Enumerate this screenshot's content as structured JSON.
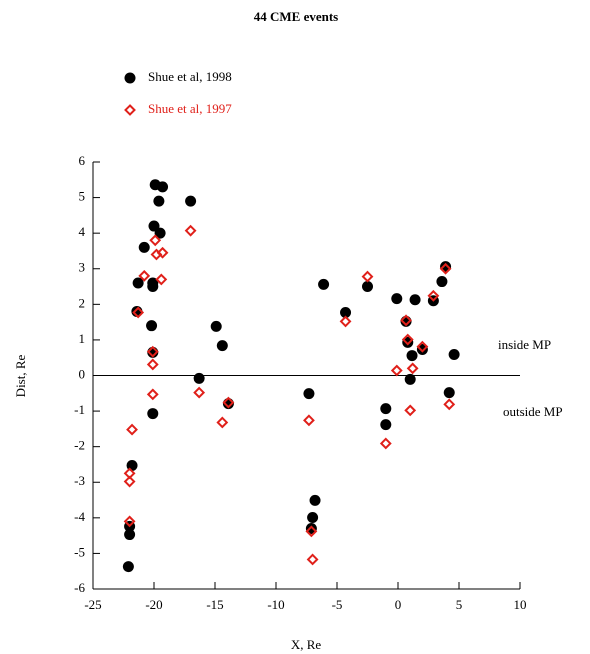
{
  "chart_data": {
    "type": "scatter",
    "title": "44 CME events",
    "x_label": "X, Re",
    "y_label": "Dist, Re",
    "annotations": [
      "inside MP",
      "outside MP"
    ],
    "reference_line": 0,
    "xlim": [
      -25,
      10
    ],
    "xticks": [
      -25,
      -20,
      -15,
      -10,
      -5,
      0,
      5,
      10
    ],
    "ylim": [
      -6,
      6
    ],
    "yticks": [
      -6,
      -5,
      -4,
      -3,
      -2,
      -1,
      0,
      1,
      2,
      3,
      4,
      5,
      6
    ],
    "series": [
      {
        "name": "Shue et al, 1998",
        "color": "#000000",
        "marker": "circle",
        "x": [
          -19.9,
          -19.3,
          -17.0,
          -19.6,
          -20.0,
          -19.5,
          -20.8,
          -21.3,
          -20.1,
          -20.1,
          -21.4,
          -20.2,
          -20.1,
          -20.1,
          -21.8,
          -22.0,
          -22.0,
          -22.1,
          -14.9,
          -14.4,
          -16.3,
          -13.9,
          -6.1,
          -4.3,
          -2.5,
          -7.3,
          -7.1,
          -7.0,
          -6.8,
          -0.1,
          1.4,
          2.9,
          3.6,
          3.9,
          0.66,
          0.8,
          1.15,
          2.0,
          4.6,
          4.2,
          1.0,
          -1.0,
          -1.0
        ],
        "values": [
          5.36,
          5.3,
          4.9,
          4.9,
          4.2,
          4.0,
          3.6,
          2.6,
          2.6,
          2.5,
          1.8,
          1.4,
          0.65,
          -1.07,
          -2.53,
          -4.24,
          -4.47,
          -5.37,
          1.38,
          0.84,
          -0.08,
          -0.79,
          2.56,
          1.77,
          2.5,
          -0.51,
          -4.3,
          -3.99,
          -3.51,
          2.16,
          2.13,
          2.1,
          2.64,
          3.06,
          1.52,
          0.93,
          0.56,
          0.73,
          0.59,
          -0.48,
          -0.11,
          -0.93,
          -1.38
        ]
      },
      {
        "name": "Shue et al, 1997",
        "color": "#e0201a",
        "marker": "diamond",
        "x": [
          -17.0,
          -19.9,
          -19.8,
          -19.3,
          -19.4,
          -20.8,
          -21.3,
          -20.1,
          -20.1,
          -20.1,
          -21.8,
          -22.0,
          -22.0,
          -22.0,
          -16.3,
          -14.4,
          -13.9,
          -7.3,
          -7.1,
          -7.0,
          -4.3,
          -2.5,
          -0.1,
          0.66,
          0.8,
          1.2,
          1.0,
          -1.0,
          2.0,
          2.9,
          3.9,
          4.2
        ],
        "values": [
          4.07,
          3.8,
          3.4,
          3.45,
          2.7,
          2.8,
          1.77,
          0.67,
          0.31,
          -0.53,
          -1.52,
          -2.75,
          -2.98,
          -4.1,
          -0.48,
          -1.32,
          -0.76,
          -1.26,
          -4.38,
          -5.17,
          1.52,
          2.78,
          0.14,
          1.55,
          1.01,
          0.2,
          -0.98,
          -1.91,
          0.81,
          2.24,
          3.0,
          -0.81
        ]
      }
    ]
  }
}
